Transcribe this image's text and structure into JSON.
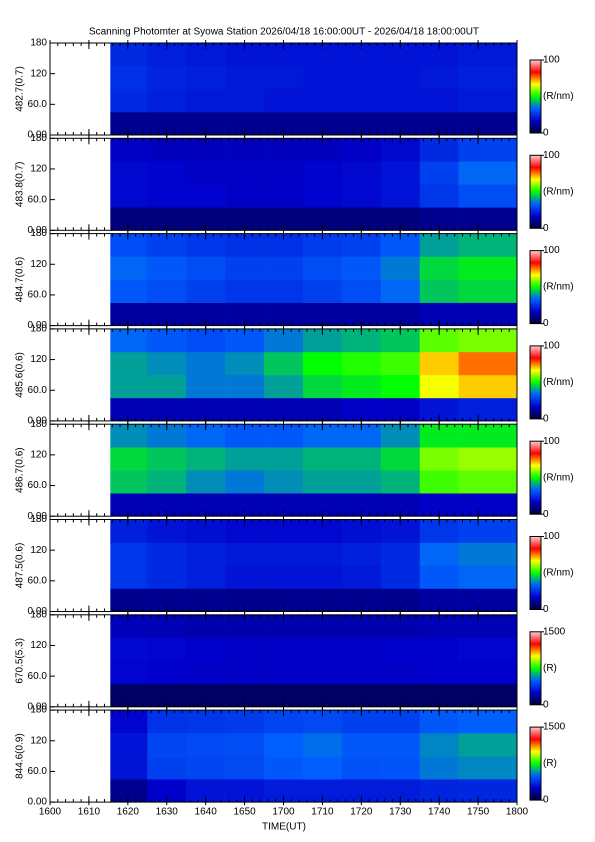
{
  "chart_data": [
    {
      "type": "heatmap",
      "title": "Scanning Photomter at Syowa Station  2026/04/18 16:00:00UT - 2026/04/18 18:00:00UT",
      "xlabel": "TIME(UT)",
      "xlim": [
        0,
        120
      ],
      "xticks": [
        {
          "value": 0,
          "label": "1600"
        },
        {
          "value": 10,
          "label": "1610"
        },
        {
          "value": 20,
          "label": "1620"
        },
        {
          "value": 30,
          "label": "1630"
        },
        {
          "value": 40,
          "label": "1640"
        },
        {
          "value": 50,
          "label": "1650"
        },
        {
          "value": 60,
          "label": "1700"
        },
        {
          "value": 70,
          "label": "1710"
        },
        {
          "value": 80,
          "label": "1720"
        },
        {
          "value": 90,
          "label": "1730"
        },
        {
          "value": 100,
          "label": "1740"
        },
        {
          "value": 110,
          "label": "1750"
        },
        {
          "value": 120,
          "label": "1800"
        }
      ],
      "x_minor_step": 2,
      "ylim": [
        0,
        180
      ],
      "yticks": [
        {
          "value": 0,
          "label": "0.00"
        },
        {
          "value": 60,
          "label": "60.0"
        },
        120,
        180
      ],
      "x_edges": [
        15.5,
        25,
        35,
        45,
        55,
        65,
        75,
        85,
        95,
        105,
        120
      ],
      "y_edges": [
        0,
        45,
        90,
        135,
        180
      ],
      "colormap": [
        "#000033",
        "#0000cc",
        "#0060ff",
        "#00ff00",
        "#ffff00",
        "#ff0000",
        "#ffcccc"
      ],
      "panels": [
        {
          "ylabel": "482.7(0.7)",
          "cbar_ticks": [
            0,
            100
          ],
          "cbar_label": "(R/nm)",
          "values": [
            [
              10,
              10,
              10,
              10,
              10,
              10,
              10,
              10,
              10,
              10
            ],
            [
              24,
              22,
              21,
              21,
              20,
              20,
              20,
              20,
              20,
              21
            ],
            [
              25,
              23,
              22,
              21,
              21,
              20,
              20,
              20,
              21,
              22
            ],
            [
              24,
              22,
              21,
              20,
              20,
              20,
              20,
              20,
              20,
              21
            ]
          ]
        },
        {
          "ylabel": "483.8(0.7)",
          "cbar_ticks": [
            0,
            100
          ],
          "cbar_label": "(R/nm)",
          "values": [
            [
              8,
              8,
              8,
              8,
              8,
              8,
              8,
              8,
              10,
              10
            ],
            [
              18,
              17,
              17,
              16,
              16,
              17,
              18,
              20,
              26,
              30
            ],
            [
              18,
              17,
              16,
              16,
              16,
              17,
              18,
              20,
              28,
              34
            ],
            [
              16,
              15,
              15,
              15,
              15,
              15,
              16,
              18,
              24,
              28
            ]
          ]
        },
        {
          "ylabel": "484.7(0.6)",
          "cbar_ticks": [
            0,
            100
          ],
          "cbar_label": "(R/nm)",
          "values": [
            [
              12,
              12,
              12,
              12,
              12,
              12,
              12,
              12,
              14,
              14
            ],
            [
              32,
              30,
              28,
              26,
              26,
              28,
              30,
              34,
              44,
              46
            ],
            [
              34,
              32,
              30,
              28,
              28,
              30,
              32,
              36,
              46,
              48
            ],
            [
              30,
              28,
              26,
              25,
              25,
              27,
              28,
              32,
              40,
              42
            ]
          ]
        },
        {
          "ylabel": "485.6(0.6)",
          "cbar_ticks": [
            0,
            100
          ],
          "cbar_label": "(R/nm)",
          "values": [
            [
              14,
              14,
              14,
              14,
              14,
              14,
              16,
              16,
              20,
              22
            ],
            [
              40,
              40,
              36,
              36,
              40,
              46,
              48,
              50,
              66,
              70
            ],
            [
              40,
              38,
              36,
              38,
              44,
              50,
              52,
              54,
              70,
              76
            ],
            [
              34,
              32,
              30,
              32,
              36,
              40,
              42,
              44,
              56,
              58
            ]
          ]
        },
        {
          "ylabel": "486.7(0.6)",
          "cbar_ticks": [
            0,
            100
          ],
          "cbar_label": "(R/nm)",
          "values": [
            [
              14,
              14,
              14,
              14,
              14,
              14,
              14,
              14,
              16,
              16
            ],
            [
              44,
              42,
              38,
              36,
              38,
              40,
              40,
              42,
              54,
              56
            ],
            [
              46,
              44,
              42,
              40,
              40,
              42,
              42,
              46,
              58,
              60
            ],
            [
              38,
              36,
              34,
              32,
              32,
              34,
              34,
              38,
              48,
              48
            ]
          ]
        },
        {
          "ylabel": "487.5(0.6)",
          "cbar_ticks": [
            0,
            100
          ],
          "cbar_label": "(R/nm)",
          "values": [
            [
              10,
              10,
              10,
              10,
              10,
              10,
              10,
              10,
              12,
              12
            ],
            [
              26,
              24,
              22,
              20,
              20,
              20,
              21,
              24,
              32,
              34
            ],
            [
              26,
              24,
              22,
              21,
              21,
              21,
              22,
              24,
              34,
              36
            ],
            [
              22,
              20,
              19,
              18,
              18,
              18,
              19,
              20,
              26,
              28
            ]
          ]
        },
        {
          "ylabel": "670.5(5.3)",
          "cbar_ticks": [
            0,
            1500
          ],
          "cbar_label": "(R)",
          "values": [
            [
              80,
              80,
              80,
              80,
              80,
              80,
              80,
              80,
              80,
              80
            ],
            [
              260,
              250,
              240,
              240,
              240,
              240,
              240,
              240,
              250,
              250
            ],
            [
              270,
              260,
              250,
              240,
              240,
              240,
              240,
              250,
              250,
              260
            ],
            [
              220,
              210,
              200,
              200,
              200,
              200,
              200,
              200,
              210,
              210
            ]
          ]
        },
        {
          "ylabel": "844.6(0.9)",
          "cbar_ticks": [
            0,
            1500
          ],
          "cbar_label": "(R)",
          "values": [
            [
              150,
              250,
              300,
              300,
              320,
              320,
              320,
              320,
              340,
              350
            ],
            [
              300,
              420,
              430,
              440,
              480,
              500,
              460,
              470,
              540,
              560
            ],
            [
              300,
              430,
              440,
              450,
              500,
              520,
              480,
              480,
              560,
              600
            ],
            [
              260,
              380,
              390,
              400,
              430,
              440,
              420,
              420,
              480,
              500
            ]
          ]
        }
      ]
    }
  ]
}
